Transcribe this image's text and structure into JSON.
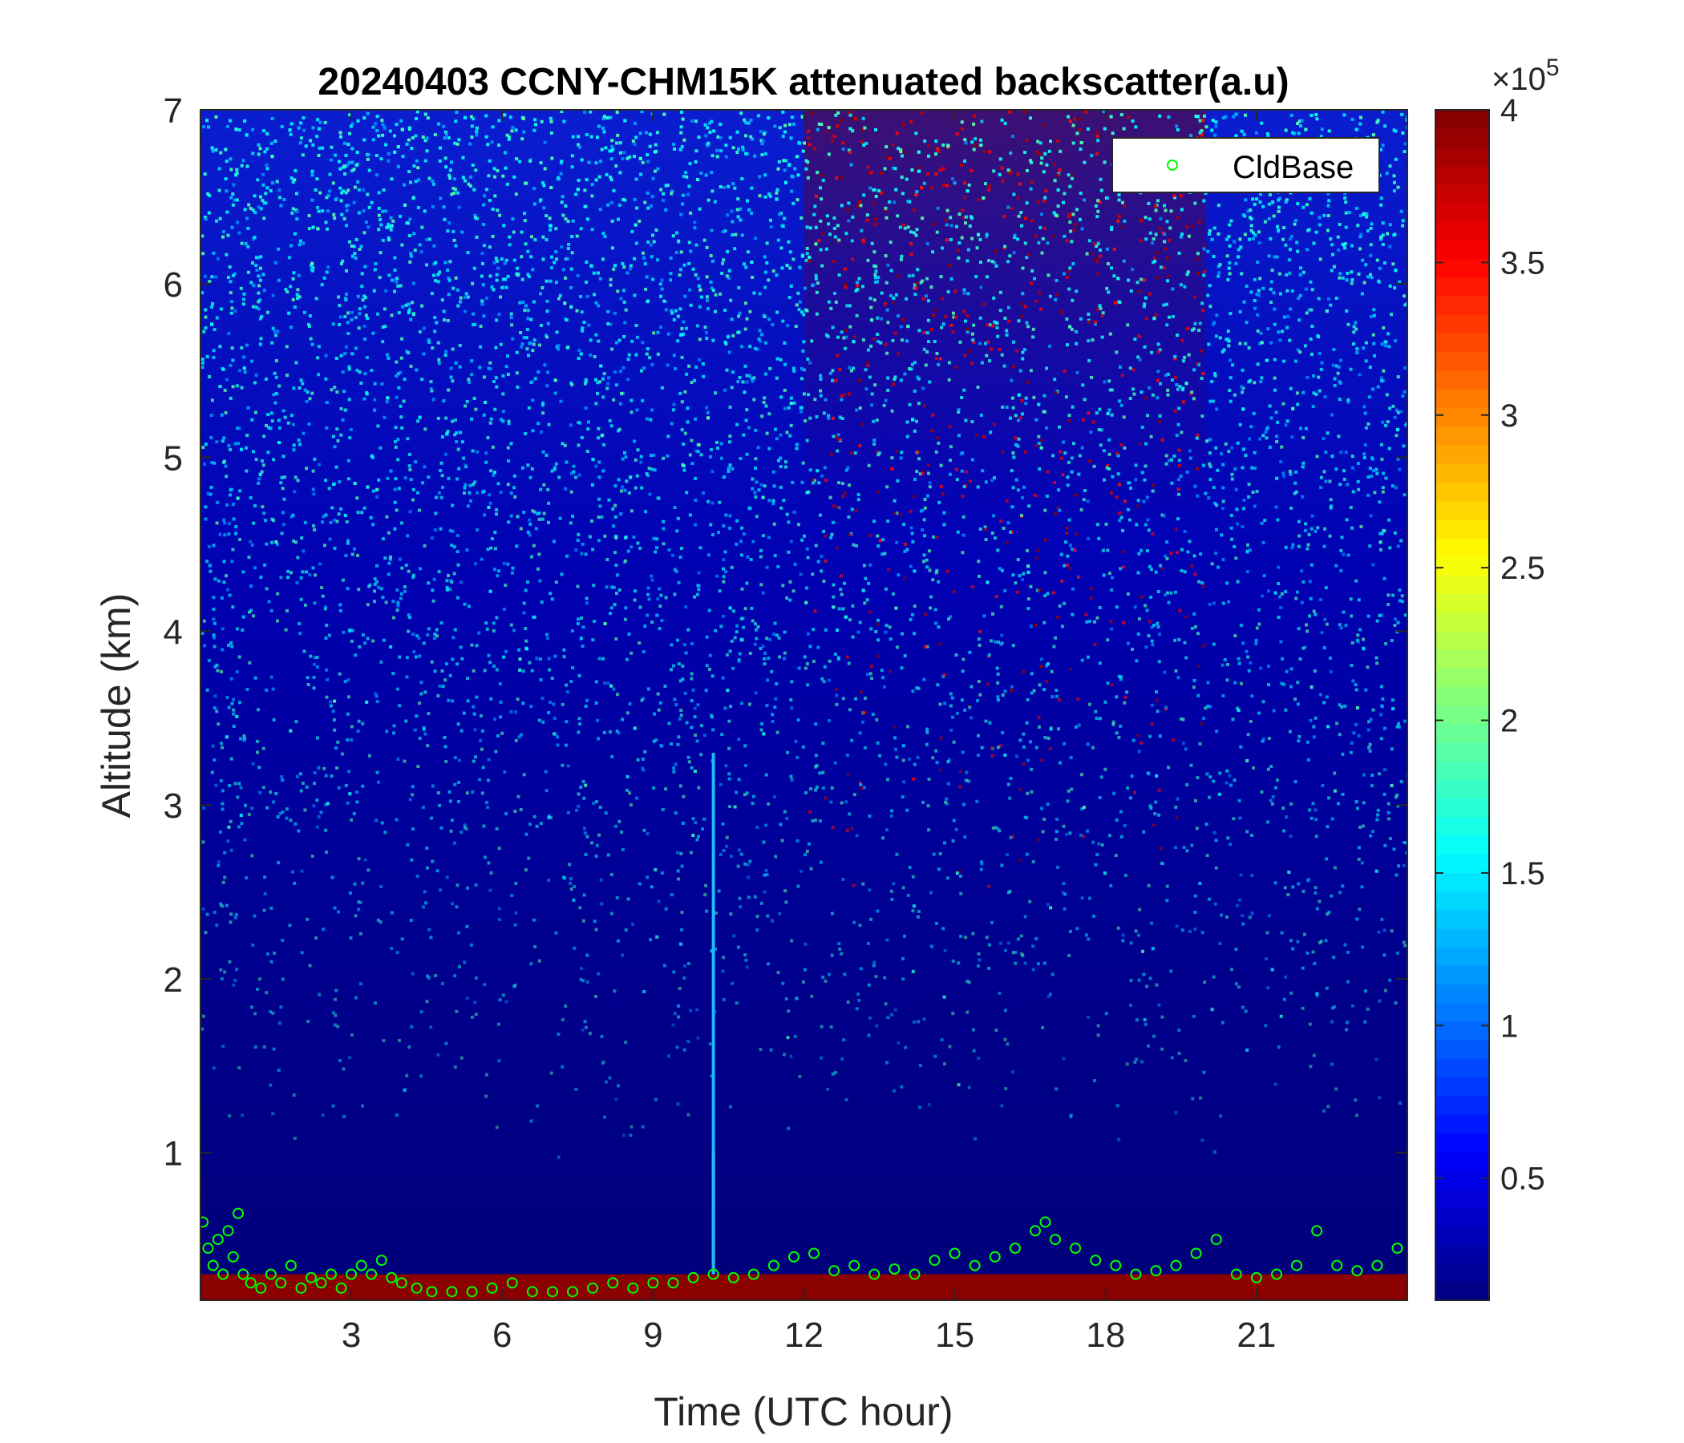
{
  "chart_data": {
    "type": "heatmap",
    "title": "20240403 CCNY-CHM15K attenuated backscatter(a.u)",
    "xlabel": "Time (UTC hour)",
    "ylabel": "Altitude (km)",
    "xlim": [
      0,
      24
    ],
    "ylim": [
      0.15,
      7
    ],
    "x_ticks": [
      3,
      6,
      9,
      12,
      15,
      18,
      21
    ],
    "y_ticks": [
      1,
      2,
      3,
      4,
      5,
      6,
      7
    ],
    "colorbar": {
      "colormap": "jet",
      "range": [
        0.1,
        4
      ],
      "ticks": [
        0.5,
        1,
        1.5,
        2,
        2.5,
        3,
        3.5,
        4
      ],
      "scale_label": "×10",
      "scale_exponent": "5"
    },
    "features": [
      {
        "description": "surface aerosol layer (high backscatter)",
        "altitude_km": [
          0.15,
          0.3
        ]
      },
      {
        "description": "thin vertical streak",
        "time_utc": 10.2,
        "altitude_km": [
          0.3,
          3.3
        ]
      },
      {
        "description": "noisy high-background region (daytime)",
        "time_utc": [
          12,
          20
        ],
        "altitude_km": [
          2.5,
          7
        ]
      }
    ],
    "series": [
      {
        "name": "CldBase",
        "marker": "circle",
        "color": "#00ff00",
        "x": [
          0.05,
          0.15,
          0.25,
          0.35,
          0.45,
          0.55,
          0.65,
          0.75,
          0.85,
          1.0,
          1.2,
          1.4,
          1.6,
          1.8,
          2.0,
          2.2,
          2.4,
          2.6,
          2.8,
          3.0,
          3.2,
          3.4,
          3.6,
          3.8,
          4.0,
          4.3,
          4.6,
          5.0,
          5.4,
          5.8,
          6.2,
          6.6,
          7.0,
          7.4,
          7.8,
          8.2,
          8.6,
          9.0,
          9.4,
          9.8,
          10.2,
          10.6,
          11.0,
          11.4,
          11.8,
          12.2,
          12.6,
          13.0,
          13.4,
          13.8,
          14.2,
          14.6,
          15.0,
          15.4,
          15.8,
          16.2,
          16.6,
          16.8,
          17.0,
          17.4,
          17.8,
          18.2,
          18.6,
          19.0,
          19.4,
          19.8,
          20.2,
          20.6,
          21.0,
          21.4,
          21.8,
          22.2,
          22.6,
          23.0,
          23.4,
          23.8
        ],
        "y": [
          0.6,
          0.45,
          0.35,
          0.5,
          0.3,
          0.55,
          0.4,
          0.65,
          0.3,
          0.25,
          0.22,
          0.3,
          0.25,
          0.35,
          0.22,
          0.28,
          0.25,
          0.3,
          0.22,
          0.3,
          0.35,
          0.3,
          0.38,
          0.28,
          0.25,
          0.22,
          0.2,
          0.2,
          0.2,
          0.22,
          0.25,
          0.2,
          0.2,
          0.2,
          0.22,
          0.25,
          0.22,
          0.25,
          0.25,
          0.28,
          0.3,
          0.28,
          0.3,
          0.35,
          0.4,
          0.42,
          0.32,
          0.35,
          0.3,
          0.33,
          0.3,
          0.38,
          0.42,
          0.35,
          0.4,
          0.45,
          0.55,
          0.6,
          0.5,
          0.45,
          0.38,
          0.35,
          0.3,
          0.32,
          0.35,
          0.42,
          0.5,
          0.3,
          0.28,
          0.3,
          0.35,
          0.55,
          0.35,
          0.32,
          0.35,
          0.45
        ]
      }
    ],
    "legend": {
      "position": "top-right",
      "entries": [
        "CldBase"
      ]
    }
  }
}
